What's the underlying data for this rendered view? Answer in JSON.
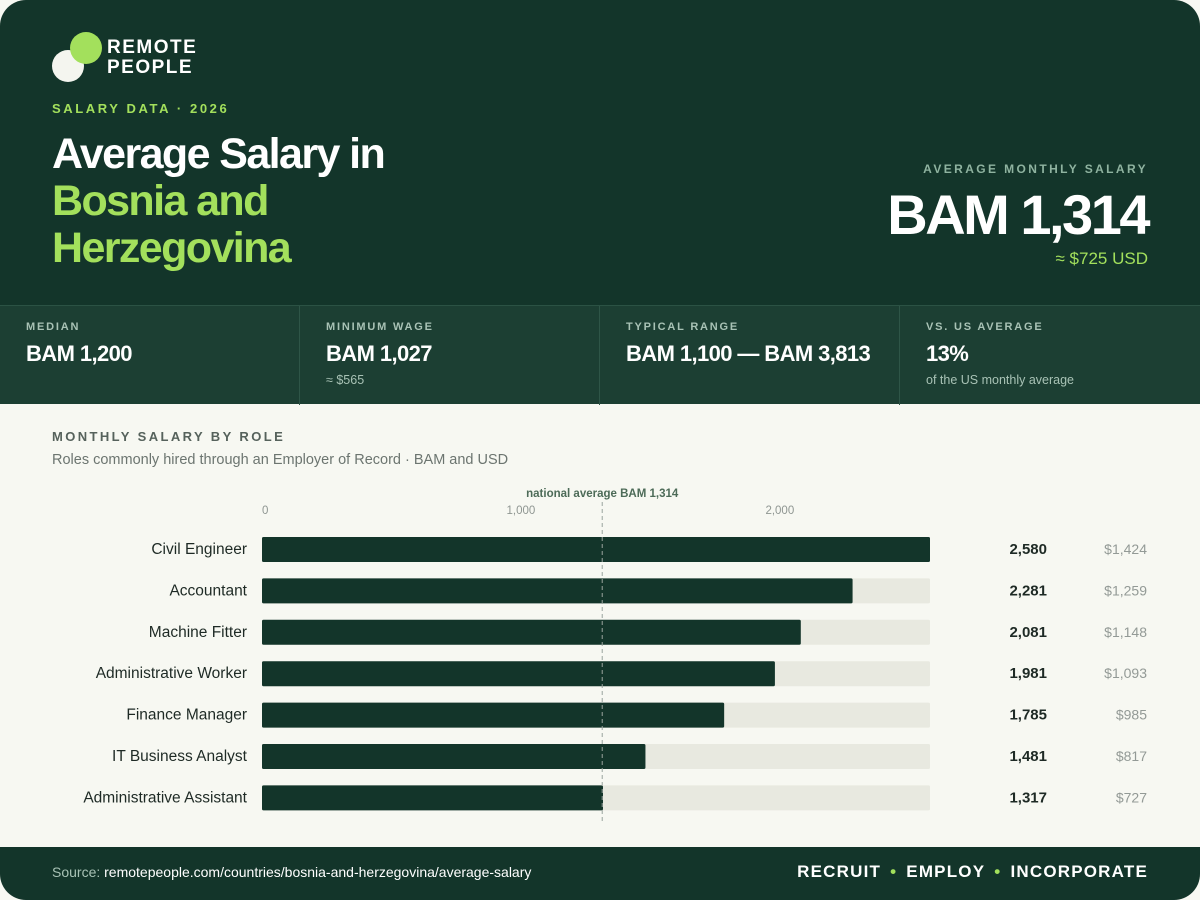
{
  "brand": {
    "line1": "REMOTE",
    "line2": "PEOPLE"
  },
  "header": {
    "eyebrow": "SALARY DATA · 2026",
    "title_line1": "Average Salary in",
    "title_line2": "Bosnia and",
    "title_line3": "Herzegovina",
    "avg_label": "AVERAGE MONTHLY SALARY",
    "avg_value": "BAM 1,314",
    "avg_usd": "≈ $725 USD"
  },
  "stats": [
    {
      "label": "MEDIAN",
      "value": "BAM 1,200",
      "sub": ""
    },
    {
      "label": "MINIMUM WAGE",
      "value": "BAM 1,027",
      "sub": "≈ $565"
    },
    {
      "label": "TYPICAL RANGE",
      "value": "BAM 1,100 — BAM 3,813",
      "sub": ""
    },
    {
      "label": "VS. US AVERAGE",
      "value": "13%",
      "sub": "of the US monthly average"
    }
  ],
  "section": {
    "title": "MONTHLY SALARY BY ROLE",
    "subtitle": "Roles commonly hired through an Employer of Record · BAM and USD"
  },
  "chart_data": {
    "type": "bar",
    "orientation": "horizontal",
    "categories": [
      "Civil Engineer",
      "Accountant",
      "Machine Fitter",
      "Administrative Worker",
      "Finance Manager",
      "IT Business Analyst",
      "Administrative Assistant"
    ],
    "values": [
      2580,
      2281,
      2081,
      1981,
      1785,
      1481,
      1317
    ],
    "value_labels": [
      "2,580",
      "2,281",
      "2,081",
      "1,981",
      "1,785",
      "1,481",
      "1,317"
    ],
    "usd_labels": [
      "$1,424",
      "$1,259",
      "$1,148",
      "$1,093",
      "$985",
      "$817",
      "$727"
    ],
    "xlim": [
      0,
      2580
    ],
    "x_ticks": [
      0,
      1000,
      2000
    ],
    "x_tick_labels": [
      "0",
      "1,000",
      "2,000"
    ],
    "reference": {
      "value": 1314,
      "label": "national average BAM 1,314"
    },
    "colors": {
      "bar": "#13352a",
      "track": "#e8e9e0",
      "reference": "#9aa39e"
    }
  },
  "footer": {
    "source_label": "Source:",
    "source_url": "remotepeople.com/countries/bosnia-and-herzegovina/average-salary",
    "tag1": "RECRUIT",
    "tag2": "EMPLOY",
    "tag3": "INCORPORATE",
    "separator": "•"
  }
}
